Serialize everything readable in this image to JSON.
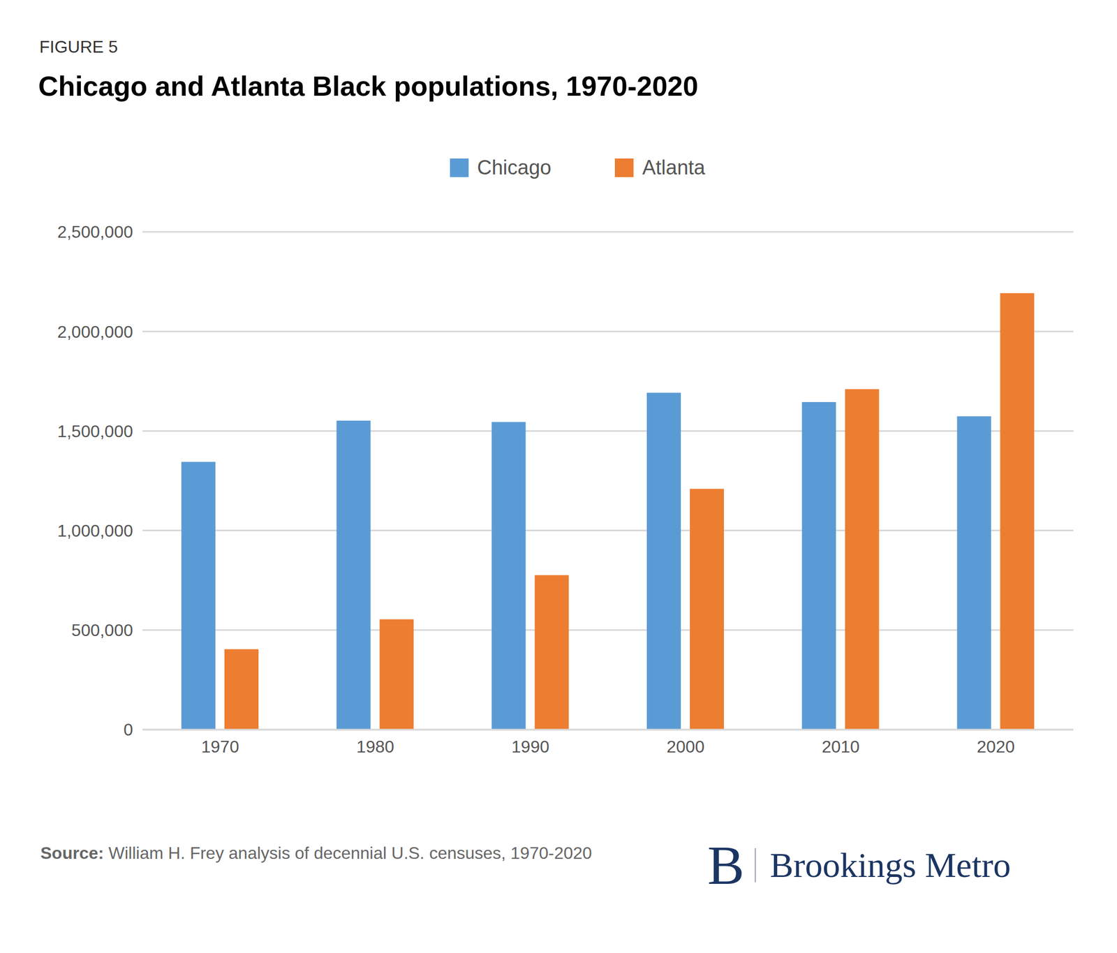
{
  "chart_data": {
    "type": "bar",
    "figure_label": "FIGURE 5",
    "title": "Chicago and Atlanta Black populations, 1970-2020",
    "categories": [
      "1970",
      "1980",
      "1990",
      "2000",
      "2010",
      "2020"
    ],
    "series": [
      {
        "name": "Chicago",
        "color": "#5b9bd5",
        "values": [
          1345000,
          1552000,
          1545000,
          1692000,
          1645000,
          1574000
        ]
      },
      {
        "name": "Atlanta",
        "color": "#ed7d31",
        "values": [
          404000,
          554000,
          776000,
          1209000,
          1710000,
          2192000
        ]
      }
    ],
    "ylim": [
      0,
      2500000
    ],
    "yticks": [
      0,
      {
        "value": 500000,
        "label": "500,000"
      },
      {
        "value": 1000000,
        "label": "1,000,000"
      },
      {
        "value": 1500000,
        "label": "1,500,000"
      },
      {
        "value": 2000000,
        "label": "2,000,000"
      },
      {
        "value": 2500000,
        "label": "2,500,000"
      }
    ],
    "grid": true,
    "legend": "top",
    "source_label": "Source:",
    "source": "William H. Frey analysis of decennial U.S. censuses, 1970-2020",
    "logo_mark": "B",
    "logo": "Brookings Metro"
  }
}
